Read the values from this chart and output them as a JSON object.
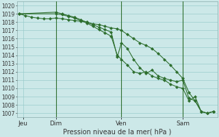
{
  "title": "Pression niveau de la mer( hPa )",
  "bg_color": "#cce8e8",
  "grid_color": "#99cccc",
  "line_color": "#2d6e2d",
  "ylim": [
    1006.5,
    1020.5
  ],
  "yticks": [
    1007,
    1008,
    1009,
    1010,
    1011,
    1012,
    1013,
    1014,
    1015,
    1016,
    1017,
    1018,
    1019,
    1020
  ],
  "xlim": [
    -1,
    97
  ],
  "xtick_positions": [
    2,
    18,
    50,
    80
  ],
  "xtick_labels": [
    "Jeu",
    "Dim",
    "Ven",
    "Sam"
  ],
  "vline_positions": [
    18,
    50,
    80
  ],
  "series1_x": [
    0,
    3,
    6,
    9,
    12,
    15,
    18,
    21,
    24,
    27,
    30,
    33,
    36,
    39,
    42,
    45,
    48,
    50,
    53,
    56,
    59,
    62,
    65,
    68,
    71,
    74,
    77,
    80,
    83,
    86,
    89,
    92,
    95
  ],
  "series1_y": [
    1019.0,
    1018.8,
    1018.6,
    1018.5,
    1018.4,
    1018.4,
    1018.5,
    1018.4,
    1018.3,
    1018.2,
    1018.1,
    1018.0,
    1017.8,
    1017.7,
    1017.5,
    1017.3,
    1017.2,
    1017.0,
    1016.5,
    1016.0,
    1015.5,
    1015.2,
    1014.8,
    1014.2,
    1013.5,
    1012.8,
    1012.0,
    1011.2,
    1009.5,
    1008.5,
    1007.2,
    1007.0,
    1007.2
  ],
  "series2_x": [
    0,
    18,
    21,
    24,
    27,
    30,
    33,
    36,
    39,
    42,
    45,
    48,
    50,
    53,
    56,
    59,
    62,
    65,
    68,
    71,
    74,
    77,
    80,
    83,
    86,
    89,
    92,
    95
  ],
  "series2_y": [
    1019.0,
    1019.2,
    1019.0,
    1018.8,
    1018.6,
    1018.3,
    1018.0,
    1017.7,
    1017.4,
    1017.1,
    1016.8,
    1013.8,
    1015.5,
    1014.8,
    1013.5,
    1012.5,
    1011.8,
    1012.2,
    1011.5,
    1011.2,
    1011.0,
    1010.8,
    1011.0,
    1008.8,
    1008.5,
    1007.2,
    1007.0,
    1007.2
  ],
  "series3_x": [
    0,
    18,
    21,
    24,
    27,
    30,
    33,
    36,
    39,
    42,
    45,
    48,
    50,
    53,
    56,
    59,
    62,
    65,
    68,
    71,
    74,
    77,
    80,
    83,
    86,
    89,
    92,
    95
  ],
  "series3_y": [
    1019.0,
    1019.0,
    1018.9,
    1018.7,
    1018.5,
    1018.2,
    1017.9,
    1017.5,
    1017.1,
    1016.7,
    1016.3,
    1014.0,
    1013.5,
    1012.8,
    1012.0,
    1011.8,
    1012.0,
    1011.5,
    1011.2,
    1011.0,
    1010.5,
    1010.2,
    1010.0,
    1008.5,
    1009.0,
    1007.2,
    1007.0,
    1007.2
  ]
}
